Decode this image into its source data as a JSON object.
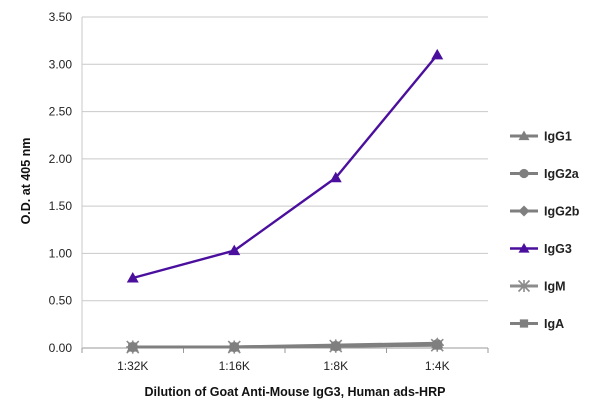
{
  "chart_data": {
    "type": "line",
    "title": "",
    "xlabel": "Dilution of Goat Anti-Mouse IgG3, Human ads-HRP",
    "ylabel": "O.D. at 405 nm",
    "categories": [
      "1:32K",
      "1:16K",
      "1:8K",
      "1:4K"
    ],
    "ylim": [
      0,
      3.5
    ],
    "yticks": [
      "0.00",
      "0.50",
      "1.00",
      "1.50",
      "2.00",
      "2.50",
      "3.00",
      "3.50"
    ],
    "grid": true,
    "legend_position": "right",
    "series": [
      {
        "name": "IgG1",
        "values": [
          0.01,
          0.01,
          0.03,
          0.05
        ],
        "color": "#7f7f7f",
        "marker": "triangle"
      },
      {
        "name": "IgG2a",
        "values": [
          0.01,
          0.01,
          0.02,
          0.04
        ],
        "color": "#7f7f7f",
        "marker": "circle"
      },
      {
        "name": "IgG2b",
        "values": [
          0.01,
          0.01,
          0.02,
          0.04
        ],
        "color": "#7f7f7f",
        "marker": "diamond"
      },
      {
        "name": "IgG3",
        "values": [
          0.74,
          1.03,
          1.8,
          3.1
        ],
        "color": "#4b0f9e",
        "marker": "triangle"
      },
      {
        "name": "IgM",
        "values": [
          0.01,
          0.01,
          0.02,
          0.03
        ],
        "color": "#8c8c8c",
        "marker": "star"
      },
      {
        "name": "IgA",
        "values": [
          0.01,
          0.01,
          0.02,
          0.03
        ],
        "color": "#7f7f7f",
        "marker": "square"
      }
    ]
  }
}
